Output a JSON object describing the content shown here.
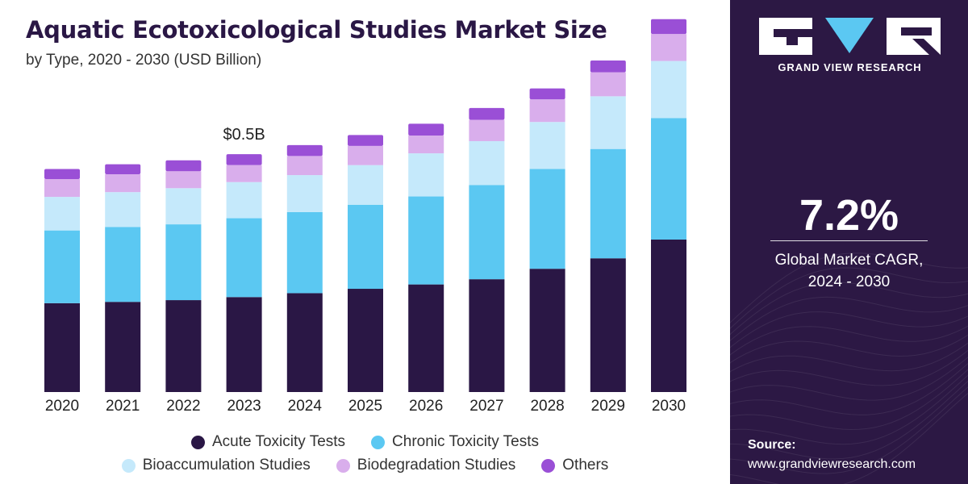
{
  "header": {
    "title": "Aquatic Ecotoxicological Studies Market Size",
    "subtitle": "by Type, 2020 - 2030 (USD Billion)"
  },
  "chart_data": {
    "type": "bar",
    "stacked": true,
    "categories": [
      "2020",
      "2021",
      "2022",
      "2023",
      "2024",
      "2025",
      "2026",
      "2027",
      "2028",
      "2029",
      "2030"
    ],
    "ylim": [
      0,
      1.0
    ],
    "grid": false,
    "legend_position": "bottom",
    "series": [
      {
        "name": "Acute Toxicity Tests",
        "color": "#2a1745",
        "values": [
          0.204,
          0.207,
          0.211,
          0.218,
          0.227,
          0.237,
          0.247,
          0.259,
          0.283,
          0.307,
          0.35
        ]
      },
      {
        "name": "Chronic Toxicity Tests",
        "color": "#5bc8f2",
        "values": [
          0.167,
          0.172,
          0.174,
          0.181,
          0.186,
          0.193,
          0.202,
          0.216,
          0.229,
          0.251,
          0.279
        ]
      },
      {
        "name": "Bioaccumulation Studies",
        "color": "#c5e9fb",
        "values": [
          0.077,
          0.08,
          0.083,
          0.083,
          0.085,
          0.091,
          0.099,
          0.101,
          0.108,
          0.121,
          0.131
        ]
      },
      {
        "name": "Biodegradation Studies",
        "color": "#d9aeec",
        "values": [
          0.041,
          0.041,
          0.039,
          0.039,
          0.044,
          0.044,
          0.041,
          0.049,
          0.052,
          0.055,
          0.062
        ]
      },
      {
        "name": "Others",
        "color": "#9a4fd6",
        "values": [
          0.023,
          0.023,
          0.025,
          0.025,
          0.025,
          0.025,
          0.027,
          0.027,
          0.025,
          0.027,
          0.034
        ]
      }
    ],
    "annotations": [
      {
        "category": "2023",
        "text": "$0.5B"
      }
    ]
  },
  "sidebar": {
    "brand": "GRAND VIEW RESEARCH",
    "cagr_value": "7.2%",
    "cagr_label_line1": "Global Market CAGR,",
    "cagr_label_line2": "2024 - 2030",
    "source_label": "Source:",
    "source_url": "www.grandviewresearch.com",
    "accent_color": "#2c1844"
  }
}
